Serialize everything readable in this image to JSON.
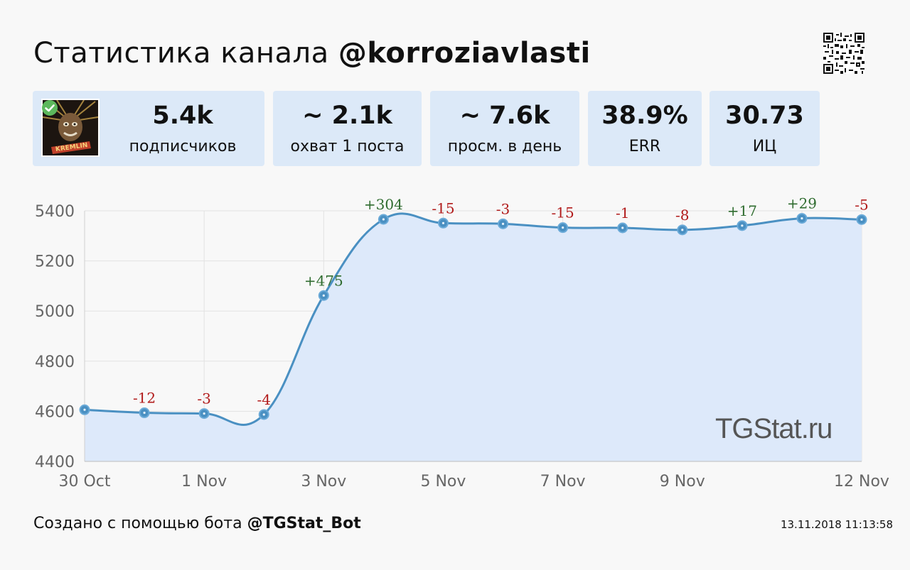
{
  "header": {
    "title_prefix": "Статистика канала ",
    "channel": "@korroziavlasti",
    "qr_icon": "qr-code-icon"
  },
  "stats": {
    "subscribers": {
      "value": "5.4k",
      "label": "подписчиков",
      "avatar_text": "KREMLIN"
    },
    "reach": {
      "value": "~ 2.1k",
      "label": "охват 1 поста"
    },
    "views": {
      "value": "~ 7.6k",
      "label": "просм. в день"
    },
    "err": {
      "value": "38.9%",
      "label": "ERR"
    },
    "ic": {
      "value": "30.73",
      "label": "ИЦ"
    }
  },
  "chart_data": {
    "type": "area",
    "x": [
      "30 Oct",
      "31 Oct",
      "1 Nov",
      "2 Nov",
      "3 Nov",
      "4 Nov",
      "5 Nov",
      "6 Nov",
      "7 Nov",
      "8 Nov",
      "9 Nov",
      "10 Nov",
      "11 Nov",
      "12 Nov"
    ],
    "values": [
      4606,
      4594,
      4591,
      4587,
      5062,
      5366,
      5351,
      5348,
      5333,
      5332,
      5324,
      5341,
      5370,
      5365
    ],
    "deltas": [
      "",
      "-12",
      "-3",
      "-4",
      "+475",
      "+304",
      "-15",
      "-3",
      "-15",
      "-1",
      "-8",
      "+17",
      "+29",
      "-5"
    ],
    "x_tick_labels": [
      "30 Oct",
      "1 Nov",
      "3 Nov",
      "5 Nov",
      "7 Nov",
      "9 Nov",
      "12 Nov"
    ],
    "y_ticks": [
      4400,
      4600,
      4800,
      5000,
      5200,
      5400
    ],
    "ylim": [
      4400,
      5400
    ],
    "grid": true,
    "line_color": "#4a90c2",
    "fill_color": "#dde9fa",
    "positive_color": "#2e6b2e",
    "negative_color": "#b11a1a",
    "watermark": "TGStat.ru"
  },
  "footer": {
    "prefix": "Создано с помощью бота ",
    "bot": "@TGStat_Bot",
    "timestamp": "13.11.2018 11:13:58"
  }
}
